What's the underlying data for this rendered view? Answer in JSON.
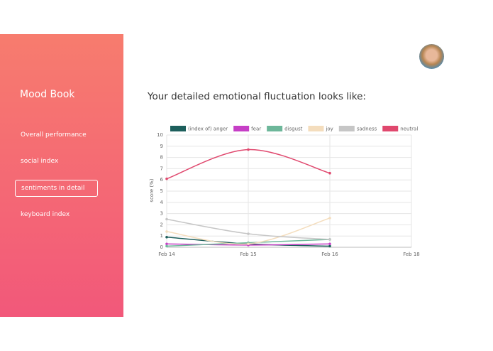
{
  "sidebar": {
    "brand": "Mood Book",
    "nav": [
      "Overall performance",
      "social index",
      "sentiments in detail",
      "keyboard index"
    ],
    "active": 2
  },
  "heading": "Your detailed emotional fluctuation looks like:",
  "chart_data": {
    "type": "line",
    "categories": [
      "Feb 14",
      "Feb 15",
      "Feb 16",
      "Feb 18"
    ],
    "y_label": "score (%)",
    "ylim": [
      0,
      10
    ],
    "yticks": [
      0,
      1,
      2,
      3,
      4,
      5,
      6,
      7,
      8,
      9,
      10
    ],
    "grid": true,
    "series": [
      {
        "name": "(index of) anger",
        "color": "#1d5f5c",
        "values": [
          0.9,
          0.3,
          0.1,
          null
        ]
      },
      {
        "name": "fear",
        "color": "#c63fc6",
        "values": [
          0.3,
          0.2,
          0.3,
          null
        ]
      },
      {
        "name": "disgust",
        "color": "#6db79a",
        "values": [
          0.1,
          0.4,
          0.7,
          null
        ]
      },
      {
        "name": "joy",
        "color": "#f4ddbd",
        "values": [
          1.4,
          0.3,
          2.6,
          null
        ]
      },
      {
        "name": "sadness",
        "color": "#c6c6c6",
        "values": [
          2.5,
          1.2,
          0.7,
          null
        ]
      },
      {
        "name": "neutral",
        "color": "#e0486e",
        "values": [
          6.1,
          8.7,
          6.6,
          null
        ]
      }
    ]
  }
}
